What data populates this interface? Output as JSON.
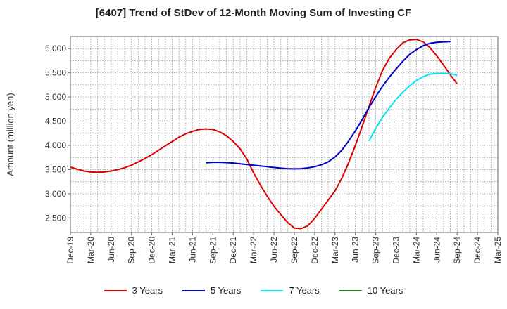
{
  "title": "[6407]  Trend of StDev of 12-Month Moving Sum of Investing CF",
  "chart_data": {
    "type": "line",
    "title": "[6407]  Trend of StDev of 12-Month Moving Sum of Investing CF",
    "xlabel": "",
    "ylabel": "Amount (million yen)",
    "ylim": [
      2200,
      6250
    ],
    "yticks": [
      2500,
      3000,
      3500,
      4000,
      4500,
      5000,
      5500,
      6000
    ],
    "ytick_labels": [
      "2,500",
      "3,000",
      "3,500",
      "4,000",
      "4,500",
      "5,000",
      "5,500",
      "6,000"
    ],
    "xlim": [
      "2019-12",
      "2025-03"
    ],
    "xtick_labels": [
      "Dec-19",
      "Mar-20",
      "Jun-20",
      "Sep-20",
      "Dec-20",
      "Mar-21",
      "Jun-21",
      "Sep-21",
      "Dec-21",
      "Mar-22",
      "Jun-22",
      "Sep-22",
      "Dec-22",
      "Mar-23",
      "Jun-23",
      "Sep-23",
      "Dec-23",
      "Mar-24",
      "Jun-24",
      "Sep-24",
      "Dec-24",
      "Mar-25"
    ],
    "grid": true,
    "legend_position": "bottom",
    "series": [
      {
        "name": "3 Years",
        "color": "#dd0000",
        "start": "2019-12",
        "values": [
          3550,
          3510,
          3470,
          3450,
          3445,
          3450,
          3470,
          3500,
          3540,
          3590,
          3660,
          3730,
          3810,
          3900,
          3990,
          4080,
          4170,
          4240,
          4290,
          4330,
          4340,
          4330,
          4280,
          4200,
          4080,
          3930,
          3720,
          3430,
          3180,
          2950,
          2740,
          2570,
          2410,
          2290,
          2280,
          2340,
          2490,
          2680,
          2870,
          3060,
          3320,
          3640,
          4000,
          4390,
          4800,
          5200,
          5550,
          5800,
          5980,
          6120,
          6180,
          6190,
          6140,
          6020,
          5850,
          5660,
          5460,
          5270
        ]
      },
      {
        "name": "5 Years",
        "color": "#0000cc",
        "start": "2021-08",
        "values": [
          3640,
          3650,
          3650,
          3645,
          3635,
          3620,
          3605,
          3590,
          3575,
          3560,
          3545,
          3530,
          3520,
          3515,
          3520,
          3535,
          3560,
          3600,
          3660,
          3760,
          3900,
          4090,
          4300,
          4530,
          4780,
          5010,
          5220,
          5410,
          5580,
          5740,
          5880,
          5980,
          6060,
          6110,
          6130,
          6140,
          6145
        ]
      },
      {
        "name": "7 Years",
        "color": "#00e5ee",
        "start": "2023-08",
        "values": [
          4090,
          4350,
          4580,
          4770,
          4950,
          5100,
          5230,
          5340,
          5420,
          5470,
          5490,
          5490,
          5480,
          5450
        ]
      },
      {
        "name": "10 Years",
        "color": "#228b22",
        "start": "2019-12",
        "values": []
      }
    ]
  }
}
